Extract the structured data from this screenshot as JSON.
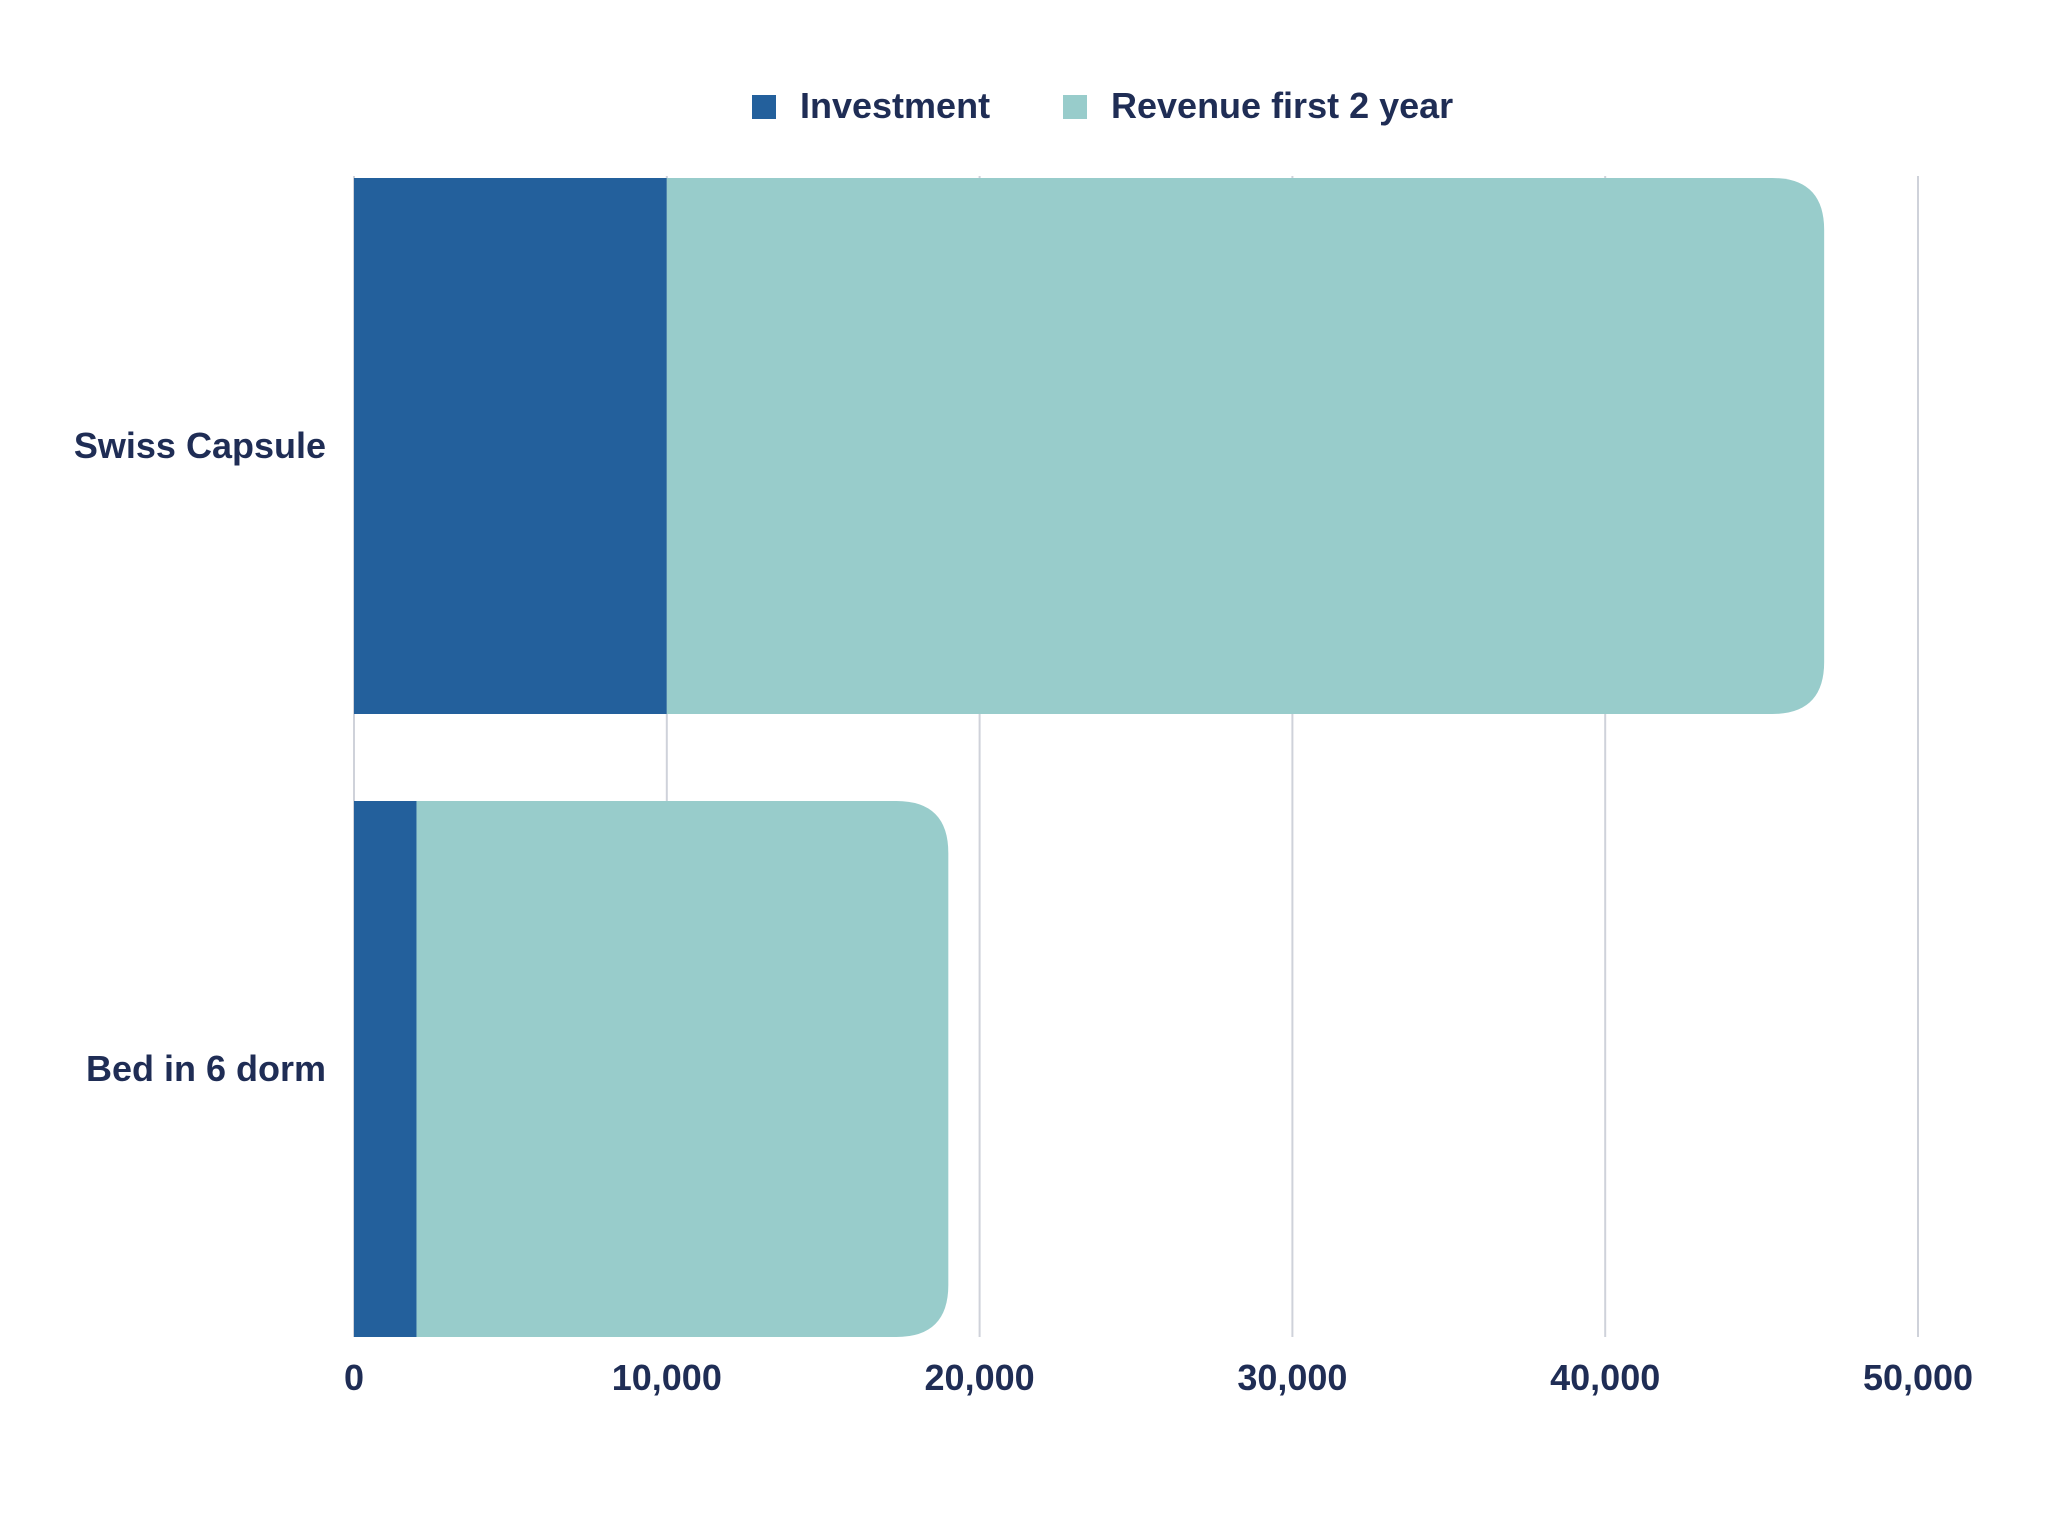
{
  "chart_data": {
    "type": "bar",
    "orientation": "horizontal",
    "stacked": true,
    "categories": [
      "Swiss Capsule",
      "Bed in 6 dorm"
    ],
    "series": [
      {
        "name": "Investment",
        "values": [
          10000,
          2000
        ]
      },
      {
        "name": "Revenue first 2 year",
        "values": [
          37000,
          17000
        ]
      }
    ],
    "xlim": [
      0,
      50000
    ],
    "xticks": [
      0,
      10000,
      20000,
      30000,
      40000,
      50000
    ],
    "xtick_labels": [
      "0",
      "10,000",
      "20,000",
      "30,000",
      "40,000",
      "50,000"
    ],
    "grid": "vertical",
    "legend": "top-center",
    "colors": {
      "Investment": "#23609c",
      "Revenue first 2 year": "#98cccb",
      "grid": "#cfd2da",
      "text": "#1f2d55"
    }
  }
}
